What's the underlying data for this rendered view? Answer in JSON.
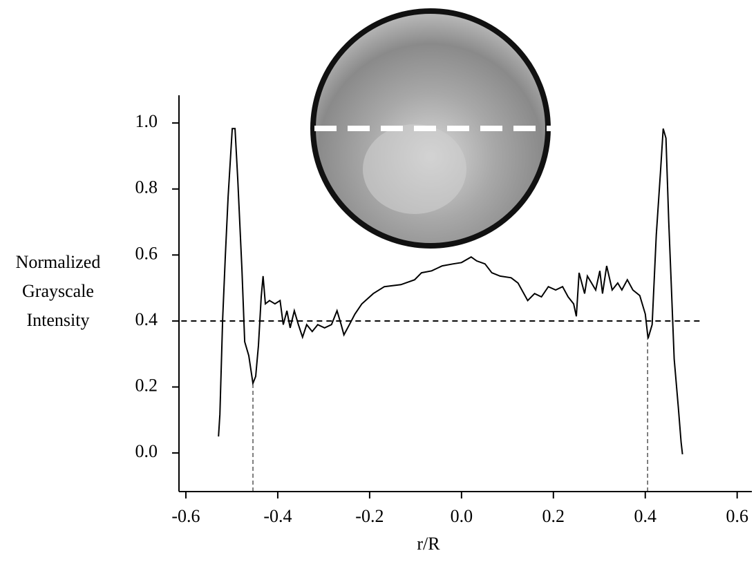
{
  "chart_data": {
    "type": "line",
    "ylabel": [
      "Normalized",
      "Grayscale",
      "Intensity"
    ],
    "xlabel": "r/R",
    "xlim": [
      -0.615,
      0.632
    ],
    "ylim": [
      -0.117,
      1.084
    ],
    "xticks": [
      -0.6,
      -0.4,
      -0.2,
      {
        "value": 0,
        "label": "0.0"
      },
      0.2,
      0.4,
      0.6
    ],
    "yticks": [
      {
        "value": 0,
        "label": "0.0"
      },
      0.2,
      0.4,
      0.6,
      0.8,
      {
        "value": 1,
        "label": "1.0"
      }
    ],
    "series": [
      {
        "color": "#000000",
        "x": [
          -0.529,
          -0.526,
          -0.52,
          -0.514,
          -0.508,
          -0.499,
          -0.493,
          -0.487,
          -0.478,
          -0.472,
          -0.463,
          -0.454,
          -0.448,
          -0.442,
          -0.436,
          -0.432,
          -0.427,
          -0.418,
          -0.406,
          -0.395,
          -0.388,
          -0.38,
          -0.373,
          -0.364,
          -0.355,
          -0.346,
          -0.337,
          -0.325,
          -0.313,
          -0.298,
          -0.283,
          -0.271,
          -0.262,
          -0.256,
          -0.244,
          -0.232,
          -0.217,
          -0.192,
          -0.168,
          -0.132,
          -0.102,
          -0.087,
          -0.065,
          -0.042,
          -0.018,
          0,
          0.021,
          0.033,
          0.051,
          0.066,
          0.084,
          0.108,
          0.123,
          0.144,
          0.159,
          0.174,
          0.189,
          0.205,
          0.22,
          0.232,
          0.244,
          0.25,
          0.256,
          0.268,
          0.274,
          0.283,
          0.292,
          0.301,
          0.307,
          0.316,
          0.328,
          0.34,
          0.349,
          0.361,
          0.373,
          0.388,
          0.4,
          0.406,
          0.415,
          0.424,
          0.433,
          0.439,
          0.445,
          0.451,
          0.457,
          0.463,
          0.472,
          0.478,
          0.481
        ],
        "values": [
          0.05,
          0.117,
          0.406,
          0.598,
          0.776,
          0.983,
          0.983,
          0.828,
          0.556,
          0.337,
          0.295,
          0.211,
          0.232,
          0.326,
          0.473,
          0.536,
          0.452,
          0.462,
          0.452,
          0.462,
          0.389,
          0.431,
          0.379,
          0.431,
          0.389,
          0.351,
          0.389,
          0.368,
          0.389,
          0.379,
          0.389,
          0.431,
          0.389,
          0.358,
          0.389,
          0.421,
          0.452,
          0.483,
          0.504,
          0.51,
          0.525,
          0.546,
          0.552,
          0.567,
          0.573,
          0.577,
          0.594,
          0.582,
          0.573,
          0.546,
          0.536,
          0.531,
          0.515,
          0.462,
          0.483,
          0.473,
          0.504,
          0.494,
          0.504,
          0.473,
          0.452,
          0.414,
          0.546,
          0.483,
          0.536,
          0.515,
          0.494,
          0.552,
          0.483,
          0.567,
          0.494,
          0.515,
          0.494,
          0.525,
          0.494,
          0.477,
          0.421,
          0.347,
          0.389,
          0.661,
          0.849,
          0.983,
          0.954,
          0.703,
          0.494,
          0.285,
          0.138,
          0.033,
          -0.004
        ]
      }
    ],
    "hline": {
      "y": 0.4,
      "x": [
        -0.61,
        0.526
      ]
    },
    "vlines": [
      {
        "x": -0.454,
        "y": 0.211
      },
      {
        "x": 0.405,
        "y": 0.347
      }
    ]
  }
}
